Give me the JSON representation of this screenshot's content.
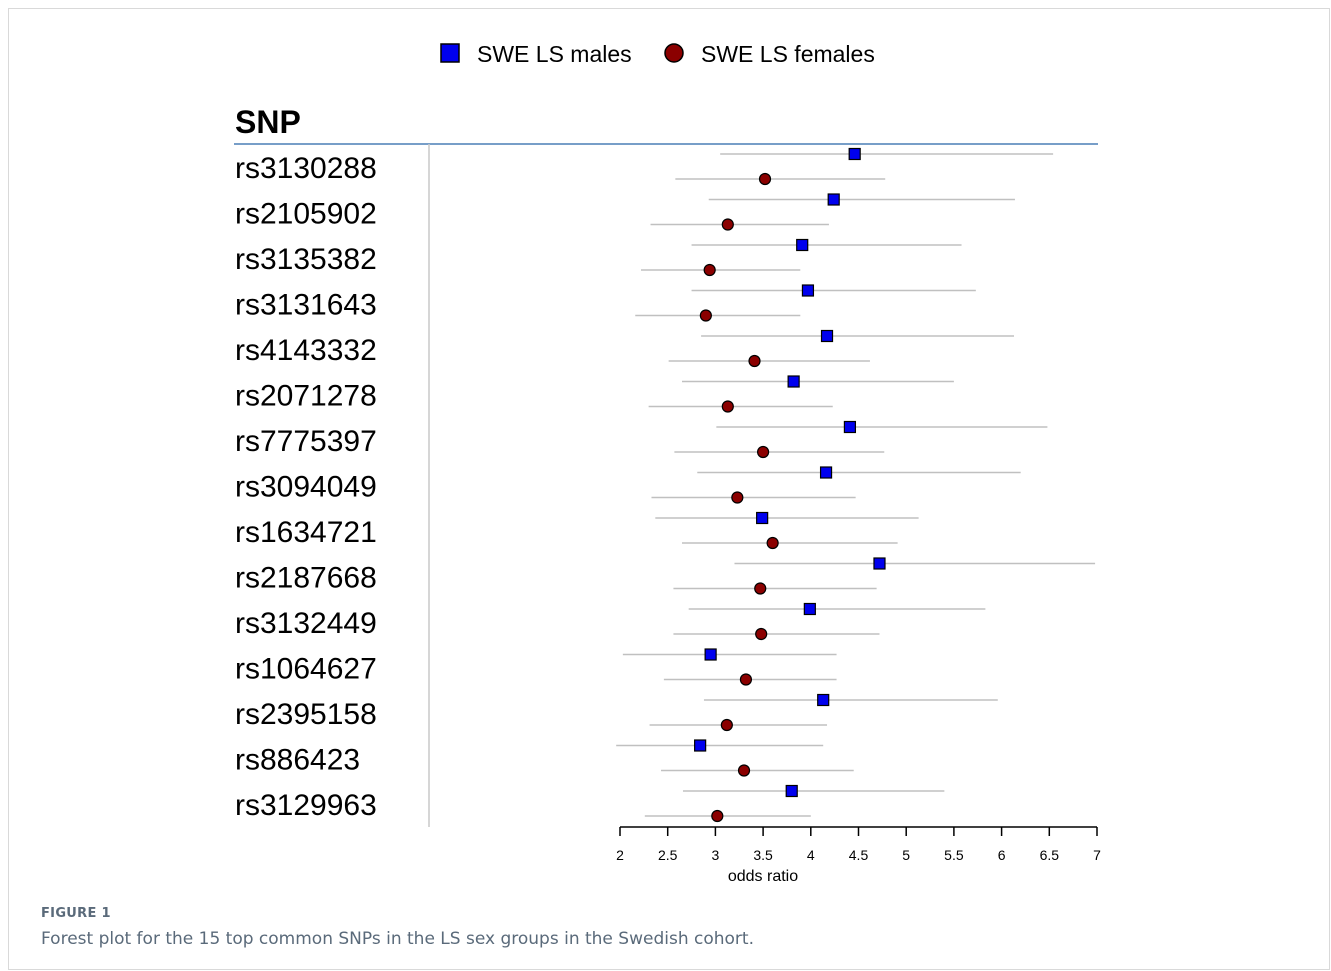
{
  "chart_data": {
    "type": "forest",
    "column_header": "SNP",
    "xlabel": "odds ratio",
    "xlim": [
      2,
      7
    ],
    "xticks": [
      "2",
      "2.5",
      "3",
      "3.5",
      "4",
      "4.5",
      "5",
      "5.5",
      "6",
      "6.5",
      "7"
    ],
    "categories": [
      "rs3130288",
      "rs2105902",
      "rs3135382",
      "rs3131643",
      "rs4143332",
      "rs2071278",
      "rs7775397",
      "rs3094049",
      "rs1634721",
      "rs2187668",
      "rs3132449",
      "rs1064627",
      "rs2395158",
      "rs886423",
      "rs3129963"
    ],
    "series": [
      {
        "name": "SWE LS males",
        "color": "#0000ee",
        "marker": "square",
        "or": [
          4.46,
          4.24,
          3.91,
          3.97,
          4.17,
          3.82,
          4.41,
          4.16,
          3.49,
          4.72,
          3.99,
          2.95,
          4.13,
          2.84,
          3.8
        ],
        "lower": [
          3.05,
          2.93,
          2.75,
          2.75,
          2.85,
          2.65,
          3.01,
          2.81,
          2.37,
          3.2,
          2.72,
          2.03,
          2.88,
          1.96,
          2.66
        ],
        "upper": [
          6.54,
          6.14,
          5.58,
          5.73,
          6.13,
          5.5,
          6.48,
          6.2,
          5.13,
          6.98,
          5.83,
          4.27,
          5.96,
          4.13,
          5.4
        ]
      },
      {
        "name": "SWE LS females",
        "color": "#8b0000",
        "marker": "circle",
        "or": [
          3.52,
          3.13,
          2.94,
          2.9,
          3.41,
          3.13,
          3.5,
          3.23,
          3.6,
          3.47,
          3.48,
          3.32,
          3.12,
          3.3,
          3.02
        ],
        "lower": [
          2.58,
          2.32,
          2.22,
          2.16,
          2.51,
          2.3,
          2.57,
          2.33,
          2.65,
          2.56,
          2.56,
          2.46,
          2.31,
          2.43,
          2.26
        ],
        "upper": [
          4.78,
          4.19,
          3.89,
          3.89,
          4.62,
          4.23,
          4.77,
          4.47,
          4.91,
          4.69,
          4.72,
          4.27,
          4.17,
          4.45,
          4.0
        ]
      }
    ],
    "grid": false,
    "legend_position": "top-center"
  },
  "figure": {
    "label": "FIGURE 1",
    "caption": "Forest plot for the 15 top common SNPs in the LS sex groups in the Swedish cohort."
  }
}
